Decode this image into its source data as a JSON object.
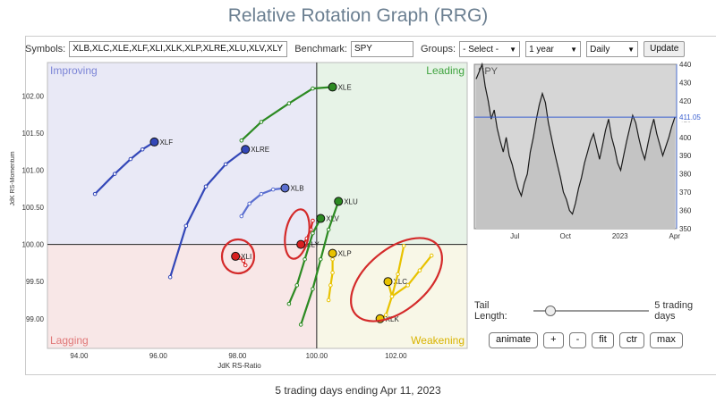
{
  "title": "Relative Rotation Graph (RRG)",
  "toolbar": {
    "symbols_label": "Symbols:",
    "symbols_value": "XLB,XLC,XLE,XLF,XLI,XLK,XLP,XLRE,XLU,XLV,XLY",
    "benchmark_label": "Benchmark:",
    "benchmark_value": "SPY",
    "groups_label": "Groups:",
    "groups_value": "- Select -",
    "period_value": "1 year",
    "interval_value": "Daily",
    "update_label": "Update"
  },
  "chart_data": [
    {
      "type": "scatter",
      "name": "rrg",
      "xlabel": "JdK RS-Ratio",
      "ylabel": "JdK RS-Momentum",
      "xlim": [
        93.2,
        103.8
      ],
      "ylim": [
        98.6,
        102.45
      ],
      "xticks": [
        "94.00",
        "96.00",
        "98.00",
        "100.00",
        "102.00"
      ],
      "xtick_values": [
        94,
        96,
        98,
        100,
        102
      ],
      "yticks": [
        "99.00",
        "99.50",
        "100.00",
        "100.50",
        "101.00",
        "101.50",
        "102.00"
      ],
      "ytick_values": [
        99,
        99.5,
        100,
        100.5,
        101,
        101.5,
        102
      ],
      "quadrants": {
        "improving": "Improving",
        "leading": "Leading",
        "lagging": "Lagging",
        "weakening": "Weakening"
      },
      "quadrant_colors": {
        "improving": "#e9e9f6",
        "leading": "#e7f3e7",
        "lagging": "#f8e7e7",
        "weakening": "#f8f7e7"
      },
      "series": [
        {
          "name": "XLE",
          "color": "#2c8a22",
          "points": [
            [
              98.1,
              101.4
            ],
            [
              98.6,
              101.65
            ],
            [
              99.3,
              101.9
            ],
            [
              99.9,
              102.1
            ],
            [
              100.4,
              102.12
            ]
          ]
        },
        {
          "name": "XLF",
          "color": "#3347b8",
          "points": [
            [
              94.4,
              100.68
            ],
            [
              94.9,
              100.95
            ],
            [
              95.3,
              101.15
            ],
            [
              95.6,
              101.28
            ],
            [
              95.9,
              101.38
            ]
          ]
        },
        {
          "name": "XLRE",
          "color": "#3347b8",
          "points": [
            [
              96.3,
              99.56
            ],
            [
              96.7,
              100.25
            ],
            [
              97.2,
              100.78
            ],
            [
              97.7,
              101.08
            ],
            [
              98.2,
              101.28
            ]
          ]
        },
        {
          "name": "XLB",
          "color": "#5b6fd0",
          "points": [
            [
              98.1,
              100.38
            ],
            [
              98.3,
              100.55
            ],
            [
              98.6,
              100.68
            ],
            [
              98.9,
              100.74
            ],
            [
              99.2,
              100.76
            ]
          ]
        },
        {
          "name": "XLI",
          "color": "#d82020",
          "points": [
            [
              98.2,
              99.72
            ],
            [
              98.15,
              99.78
            ],
            [
              98.05,
              99.82
            ],
            [
              98.0,
              99.83
            ],
            [
              97.95,
              99.84
            ]
          ]
        },
        {
          "name": "XLY",
          "color": "#d82020",
          "points": [
            [
              99.9,
              100.32
            ],
            [
              99.85,
              100.2
            ],
            [
              99.75,
              100.08
            ],
            [
              99.65,
              100.0
            ],
            [
              99.6,
              100.0
            ]
          ]
        },
        {
          "name": "XLV",
          "color": "#2c8a22",
          "points": [
            [
              99.3,
              99.2
            ],
            [
              99.5,
              99.45
            ],
            [
              99.7,
              99.8
            ],
            [
              99.9,
              100.15
            ],
            [
              100.1,
              100.35
            ]
          ]
        },
        {
          "name": "XLU",
          "color": "#2c8a22",
          "points": [
            [
              99.6,
              98.92
            ],
            [
              99.9,
              99.4
            ],
            [
              100.1,
              99.8
            ],
            [
              100.3,
              100.2
            ],
            [
              100.55,
              100.58
            ]
          ]
        },
        {
          "name": "XLP",
          "color": "#e8c200",
          "points": [
            [
              100.3,
              99.25
            ],
            [
              100.35,
              99.45
            ],
            [
              100.4,
              99.62
            ],
            [
              100.4,
              99.8
            ],
            [
              100.4,
              99.88
            ]
          ]
        },
        {
          "name": "XLC",
          "color": "#e8c200",
          "points": [
            [
              102.9,
              99.85
            ],
            [
              102.6,
              99.65
            ],
            [
              102.3,
              99.45
            ],
            [
              101.9,
              99.3
            ],
            [
              101.8,
              99.5
            ]
          ]
        },
        {
          "name": "XLK",
          "color": "#e8c200",
          "points": [
            [
              102.2,
              99.98
            ],
            [
              102.05,
              99.6
            ],
            [
              101.9,
              99.3
            ],
            [
              101.75,
              99.05
            ],
            [
              101.6,
              99.0
            ]
          ]
        }
      ]
    },
    {
      "type": "line",
      "name": "benchmark",
      "title": "SPY",
      "current_value": "411.05",
      "current": 411.05,
      "ylim": [
        350,
        440
      ],
      "yticks": [
        "440",
        "430",
        "420",
        "410",
        "400",
        "390",
        "380",
        "370",
        "360",
        "350"
      ],
      "ytick_values": [
        440,
        430,
        420,
        410,
        400,
        390,
        380,
        370,
        360,
        350
      ],
      "xticks": [
        "Jul",
        "Oct",
        "2023",
        "Apr"
      ],
      "xtick_positions": [
        0.2,
        0.45,
        0.72,
        0.99
      ],
      "values": [
        432,
        436,
        440,
        428,
        420,
        410,
        415,
        405,
        398,
        392,
        400,
        390,
        385,
        378,
        372,
        368,
        375,
        380,
        392,
        400,
        410,
        418,
        424,
        419,
        408,
        400,
        392,
        385,
        378,
        370,
        366,
        360,
        358,
        364,
        372,
        378,
        386,
        392,
        398,
        402,
        395,
        388,
        396,
        404,
        410,
        400,
        394,
        386,
        382,
        390,
        398,
        405,
        412,
        408,
        400,
        393,
        388,
        396,
        404,
        410,
        402,
        396,
        390,
        395,
        400,
        406,
        411
      ]
    }
  ],
  "controls": {
    "tail_length_label": "Tail Length:",
    "tail_length_value": "5 trading days",
    "tail_fraction": 0.15,
    "buttons": [
      "animate",
      "+",
      "-",
      "fit",
      "ctr",
      "max"
    ]
  },
  "footer": "5 trading days ending Apr 11, 2023",
  "colors": {
    "highlight_circle": "#d42a2a",
    "quadrant_divider": "#222222",
    "benchmark_line": "#1a1a1a"
  }
}
